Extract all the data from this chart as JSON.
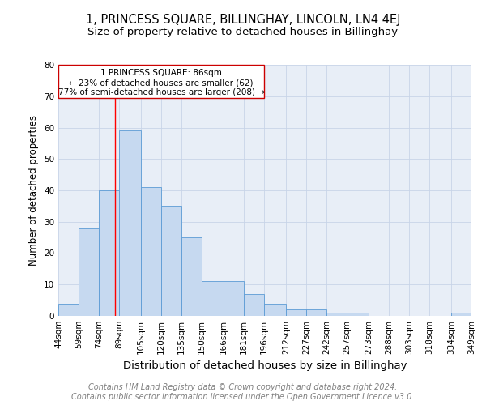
{
  "title": "1, PRINCESS SQUARE, BILLINGHAY, LINCOLN, LN4 4EJ",
  "subtitle": "Size of property relative to detached houses in Billinghay",
  "xlabel": "Distribution of detached houses by size in Billinghay",
  "ylabel": "Number of detached properties",
  "bin_labels": [
    "44sqm",
    "59sqm",
    "74sqm",
    "89sqm",
    "105sqm",
    "120sqm",
    "135sqm",
    "150sqm",
    "166sqm",
    "181sqm",
    "196sqm",
    "212sqm",
    "227sqm",
    "242sqm",
    "257sqm",
    "273sqm",
    "288sqm",
    "303sqm",
    "318sqm",
    "334sqm",
    "349sqm"
  ],
  "bin_edges": [
    44,
    59,
    74,
    89,
    105,
    120,
    135,
    150,
    166,
    181,
    196,
    212,
    227,
    242,
    257,
    273,
    288,
    303,
    318,
    334,
    349
  ],
  "bar_heights": [
    4,
    28,
    40,
    59,
    41,
    35,
    25,
    11,
    11,
    7,
    4,
    2,
    2,
    1,
    1,
    0,
    0,
    0,
    0,
    1,
    1
  ],
  "bar_color": "#c6d9f0",
  "bar_edge_color": "#5b9bd5",
  "plot_bg_color": "#e8eef7",
  "fig_bg_color": "#ffffff",
  "red_line_x": 86,
  "ylim": [
    0,
    80
  ],
  "yticks": [
    0,
    10,
    20,
    30,
    40,
    50,
    60,
    70,
    80
  ],
  "annotation_title": "1 PRINCESS SQUARE: 86sqm",
  "annotation_line1": "← 23% of detached houses are smaller (62)",
  "annotation_line2": "77% of semi-detached houses are larger (208) →",
  "annotation_box_color": "#ffffff",
  "annotation_box_edge": "#cc0000",
  "footer1": "Contains HM Land Registry data © Crown copyright and database right 2024.",
  "footer2": "Contains public sector information licensed under the Open Government Licence v3.0.",
  "title_fontsize": 10.5,
  "subtitle_fontsize": 9.5,
  "xlabel_fontsize": 9.5,
  "ylabel_fontsize": 8.5,
  "tick_fontsize": 7.5,
  "footer_fontsize": 7,
  "annotation_fontsize": 7.5,
  "grid_color": "#c8d4e8"
}
